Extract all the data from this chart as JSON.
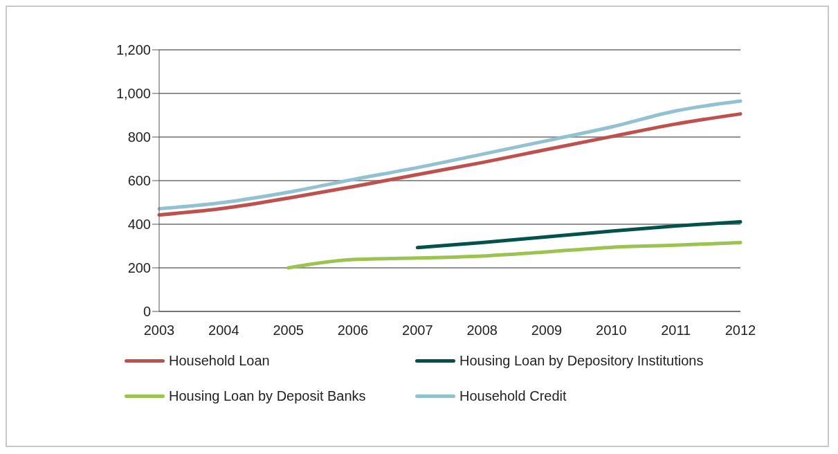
{
  "chart_data": {
    "type": "line",
    "categories": [
      "2003",
      "2004",
      "2005",
      "2006",
      "2007",
      "2008",
      "2009",
      "2010",
      "2011",
      "2012"
    ],
    "series": [
      {
        "name": "Household Loan",
        "color": "#c0504d",
        "values": [
          443,
          473,
          520,
          572,
          628,
          683,
          743,
          802,
          860,
          906
        ]
      },
      {
        "name": "Housing Loan by Depository Institutions",
        "color": "#00524a",
        "values": [
          null,
          null,
          null,
          null,
          293,
          316,
          342,
          368,
          392,
          411
        ]
      },
      {
        "name": "Housing Loan by Deposit Banks",
        "color": "#9bc34f",
        "values": [
          null,
          null,
          200,
          238,
          245,
          254,
          273,
          294,
          304,
          316
        ]
      },
      {
        "name": "Household Credit",
        "color": "#92c1d1",
        "values": [
          471,
          500,
          547,
          605,
          660,
          721,
          783,
          846,
          920,
          965
        ]
      }
    ],
    "ylim": [
      0,
      1200
    ],
    "yticks": [
      0,
      200,
      400,
      600,
      800,
      {
        "value": 1000,
        "label": "1,000"
      },
      {
        "value": 1200,
        "label": "1,200"
      }
    ],
    "grid": "y",
    "legend": "bottom",
    "marker": "none",
    "line_style": "solid"
  }
}
